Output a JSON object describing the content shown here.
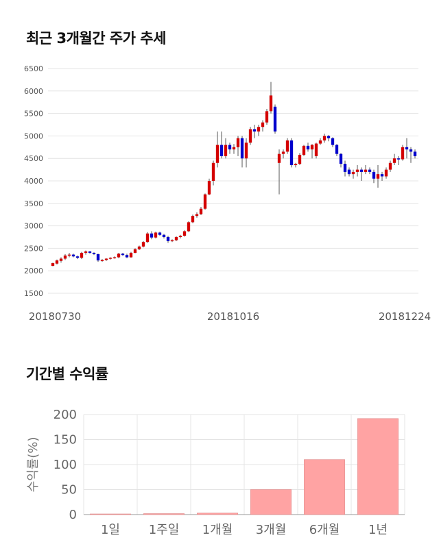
{
  "sections": {
    "price_title": "최근 3개월간 주가 추세",
    "return_title": "기간별 수익률"
  },
  "colors": {
    "up": "#d40000",
    "down": "#0000cc",
    "bar": "#ffa3a3",
    "grid": "#e4e4e4"
  },
  "chart_data": [
    {
      "type": "candlestick",
      "title": "최근 3개월간 주가 추세",
      "ylim": [
        1500,
        6500
      ],
      "yticks": [
        "1500",
        "2000",
        "2500",
        "3000",
        "3500",
        "4000",
        "4500",
        "5000",
        "5500",
        "6000",
        "6500"
      ],
      "xticks": [
        "20180730",
        "20181016",
        "20181224"
      ],
      "grid": true,
      "candles": [
        [
          2110,
          2180,
          2100,
          2170
        ],
        [
          2160,
          2250,
          2140,
          2230
        ],
        [
          2220,
          2300,
          2180,
          2270
        ],
        [
          2270,
          2370,
          2240,
          2340
        ],
        [
          2340,
          2400,
          2300,
          2360
        ],
        [
          2360,
          2380,
          2300,
          2320
        ],
        [
          2320,
          2340,
          2260,
          2290
        ],
        [
          2290,
          2420,
          2260,
          2400
        ],
        [
          2400,
          2450,
          2360,
          2430
        ],
        [
          2430,
          2440,
          2380,
          2400
        ],
        [
          2400,
          2410,
          2350,
          2370
        ],
        [
          2370,
          2380,
          2200,
          2230
        ],
        [
          2230,
          2260,
          2200,
          2240
        ],
        [
          2240,
          2280,
          2220,
          2270
        ],
        [
          2270,
          2300,
          2250,
          2290
        ],
        [
          2290,
          2320,
          2270,
          2300
        ],
        [
          2300,
          2400,
          2280,
          2380
        ],
        [
          2380,
          2400,
          2330,
          2350
        ],
        [
          2350,
          2380,
          2280,
          2300
        ],
        [
          2300,
          2420,
          2290,
          2400
        ],
        [
          2400,
          2500,
          2390,
          2480
        ],
        [
          2480,
          2560,
          2460,
          2540
        ],
        [
          2540,
          2660,
          2520,
          2640
        ],
        [
          2640,
          2860,
          2620,
          2830
        ],
        [
          2830,
          2880,
          2700,
          2740
        ],
        [
          2740,
          2870,
          2720,
          2850
        ],
        [
          2850,
          2870,
          2780,
          2800
        ],
        [
          2800,
          2820,
          2720,
          2750
        ],
        [
          2750,
          2780,
          2620,
          2660
        ],
        [
          2660,
          2700,
          2640,
          2680
        ],
        [
          2680,
          2770,
          2660,
          2750
        ],
        [
          2750,
          2800,
          2720,
          2780
        ],
        [
          2780,
          2900,
          2760,
          2880
        ],
        [
          2880,
          3100,
          2860,
          3080
        ],
        [
          3080,
          3250,
          3060,
          3220
        ],
        [
          3220,
          3300,
          3180,
          3260
        ],
        [
          3260,
          3420,
          3240,
          3380
        ],
        [
          3380,
          3720,
          3360,
          3700
        ],
        [
          3700,
          4050,
          3680,
          4000
        ],
        [
          4000,
          4450,
          3900,
          4400
        ],
        [
          4400,
          5100,
          4300,
          4800
        ],
        [
          4800,
          5100,
          4500,
          4550
        ],
        [
          4550,
          4950,
          4500,
          4800
        ],
        [
          4800,
          4850,
          4600,
          4700
        ],
        [
          4700,
          4820,
          4600,
          4750
        ],
        [
          4750,
          5000,
          4550,
          4950
        ],
        [
          4950,
          5000,
          4300,
          4500
        ],
        [
          4500,
          4950,
          4300,
          4850
        ],
        [
          4850,
          5200,
          4800,
          5150
        ],
        [
          5150,
          5250,
          4950,
          5100
        ],
        [
          5100,
          5250,
          5000,
          5200
        ],
        [
          5200,
          5350,
          5100,
          5300
        ],
        [
          5300,
          5600,
          5250,
          5550
        ],
        [
          5550,
          6200,
          5500,
          5900
        ],
        [
          5650,
          5700,
          5050,
          5100
        ],
        [
          4400,
          4700,
          3700,
          4600
        ],
        [
          4600,
          4700,
          4500,
          4650
        ],
        [
          4650,
          4950,
          4600,
          4900
        ],
        [
          4900,
          4950,
          4300,
          4350
        ],
        [
          4350,
          4400,
          4300,
          4380
        ],
        [
          4380,
          4620,
          4350,
          4580
        ],
        [
          4580,
          4800,
          4550,
          4780
        ],
        [
          4780,
          4850,
          4650,
          4700
        ],
        [
          4700,
          4820,
          4500,
          4800
        ],
        [
          4550,
          4850,
          4500,
          4830
        ],
        [
          4830,
          4950,
          4800,
          4900
        ],
        [
          4900,
          5050,
          4850,
          5000
        ],
        [
          5000,
          5020,
          4880,
          4950
        ],
        [
          4950,
          4970,
          4750,
          4800
        ],
        [
          4800,
          4820,
          4550,
          4600
        ],
        [
          4600,
          4620,
          4300,
          4380
        ],
        [
          4380,
          4450,
          4100,
          4200
        ],
        [
          4250,
          4300,
          4100,
          4150
        ],
        [
          4150,
          4250,
          4050,
          4200
        ],
        [
          4200,
          4350,
          4100,
          4250
        ],
        [
          4250,
          4300,
          4000,
          4200
        ],
        [
          4200,
          4350,
          4150,
          4250
        ],
        [
          4250,
          4300,
          4150,
          4200
        ],
        [
          4200,
          4250,
          3950,
          4050
        ],
        [
          4050,
          4350,
          3850,
          4150
        ],
        [
          4150,
          4200,
          4000,
          4100
        ],
        [
          4100,
          4300,
          4050,
          4250
        ],
        [
          4250,
          4450,
          4200,
          4400
        ],
        [
          4400,
          4600,
          4350,
          4500
        ],
        [
          4500,
          4550,
          4350,
          4480
        ],
        [
          4480,
          4800,
          4450,
          4750
        ],
        [
          4750,
          4950,
          4500,
          4700
        ],
        [
          4700,
          4750,
          4400,
          4650
        ],
        [
          4650,
          4700,
          4500,
          4550
        ]
      ]
    },
    {
      "type": "bar",
      "title": "기간별 수익률",
      "categories": [
        "1일",
        "1주일",
        "1개월",
        "3개월",
        "6개월",
        "1년"
      ],
      "values": [
        0,
        2,
        3,
        50,
        110,
        192
      ],
      "ylabel": "수익률(%)",
      "ylim": [
        0,
        200
      ],
      "yticks": [
        "0",
        "50",
        "100",
        "150",
        "200"
      ],
      "grid": true
    }
  ]
}
